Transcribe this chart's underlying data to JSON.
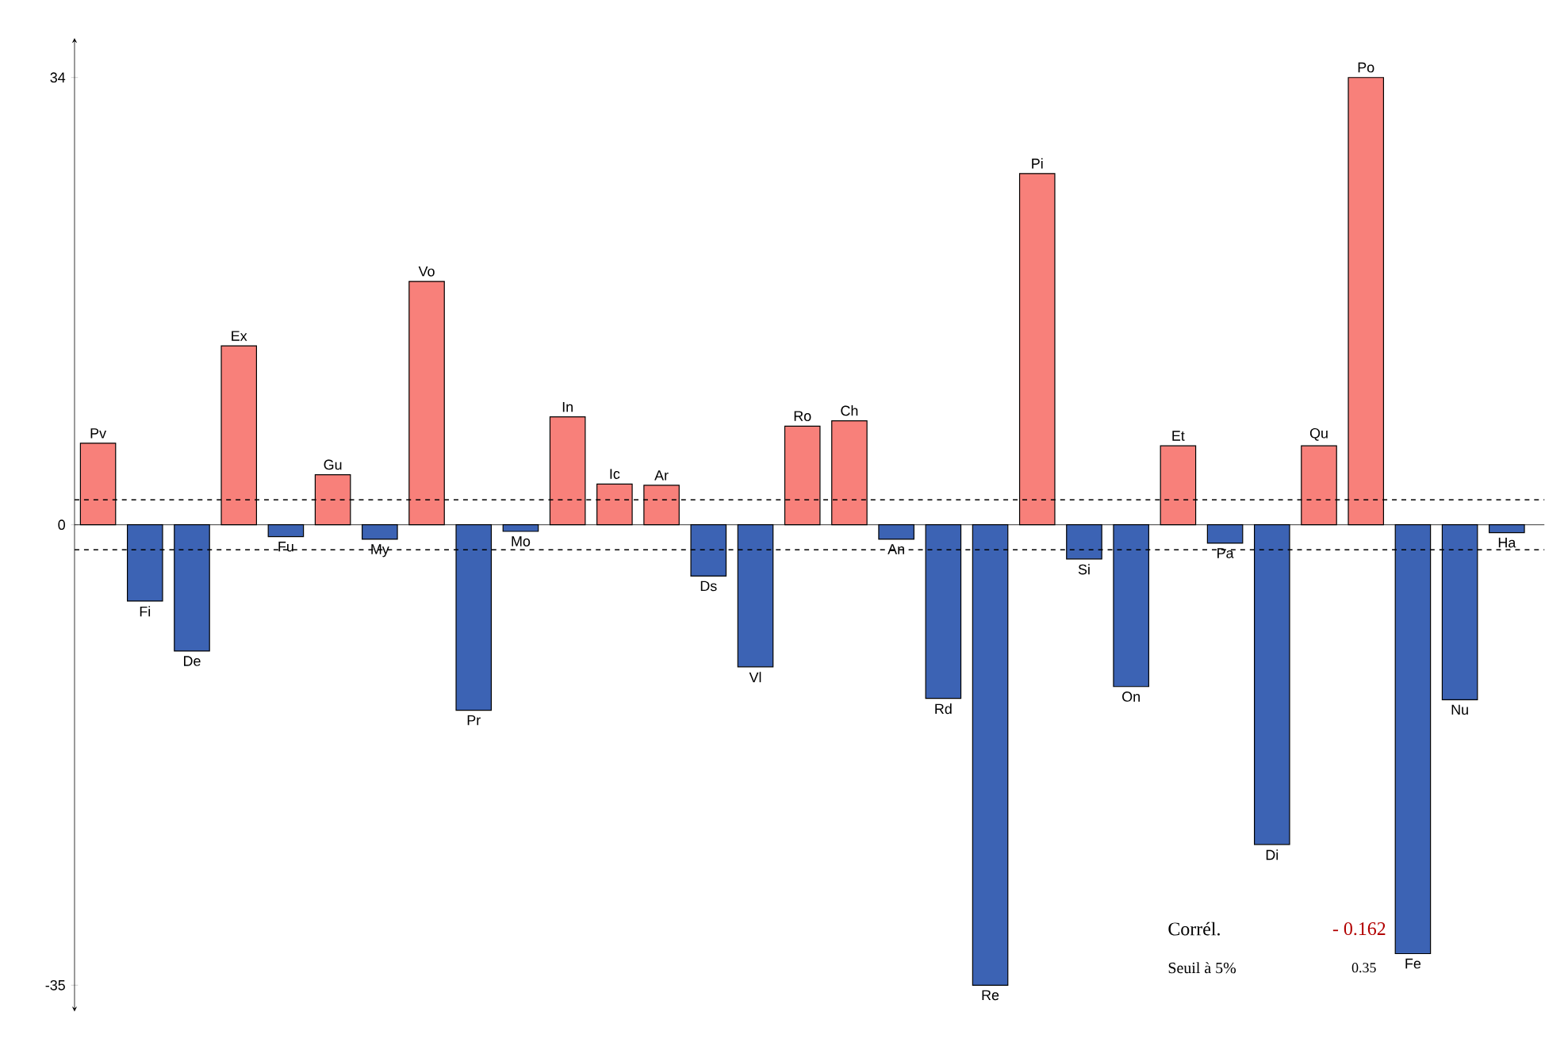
{
  "chart_data": {
    "type": "bar",
    "categories": [
      "Pv",
      "Fi",
      "De",
      "Ex",
      "Fu",
      "Gu",
      "My",
      "Vo",
      "Pr",
      "Mo",
      "In",
      "Ic",
      "Ar",
      "Ds",
      "Vl",
      "Ro",
      "Ch",
      "An",
      "Rd",
      "Re",
      "Pi",
      "Si",
      "On",
      "Et",
      "Pa",
      "Di",
      "Qu",
      "Po",
      "Fe",
      "Nu",
      "Ha"
    ],
    "values": [
      6.2,
      -5.8,
      -9.6,
      13.6,
      -0.9,
      3.8,
      -1.1,
      18.5,
      -14.1,
      -0.5,
      8.2,
      3.1,
      3.0,
      -3.9,
      -10.8,
      7.5,
      7.9,
      -1.1,
      -13.2,
      -35,
      26.7,
      -2.6,
      -12.3,
      6.0,
      -1.4,
      -24.3,
      6.0,
      34,
      -32.6,
      -13.3,
      -0.6
    ],
    "colors": [
      "#f8807a",
      "#3c63b4",
      "#3c63b4",
      "#f8807a",
      "#3c63b4",
      "#f8807a",
      "#3c63b4",
      "#f8807a",
      "#3c63b4",
      "#3c63b4",
      "#f8807a",
      "#f8807a",
      "#f8807a",
      "#3c63b4",
      "#3c63b4",
      "#f8807a",
      "#f8807a",
      "#3c63b4",
      "#3c63b4",
      "#3c63b4",
      "#f8807a",
      "#3c63b4",
      "#3c63b4",
      "#f8807a",
      "#3c63b4",
      "#3c63b4",
      "#f8807a",
      "#f8807a",
      "#3c63b4",
      "#3c63b4",
      "#3c63b4"
    ],
    "ylim": [
      -37,
      37
    ],
    "yticks": [
      -35,
      0,
      34
    ],
    "ref_lines": [
      {
        "axis": "y",
        "value": 1.9,
        "line_style": "dashed"
      },
      {
        "axis": "y",
        "value": -1.9,
        "line_style": "dashed"
      }
    ],
    "annotations": [
      "Corrél.",
      "- 0.162",
      "Seuil à 5%",
      "0.35"
    ]
  }
}
